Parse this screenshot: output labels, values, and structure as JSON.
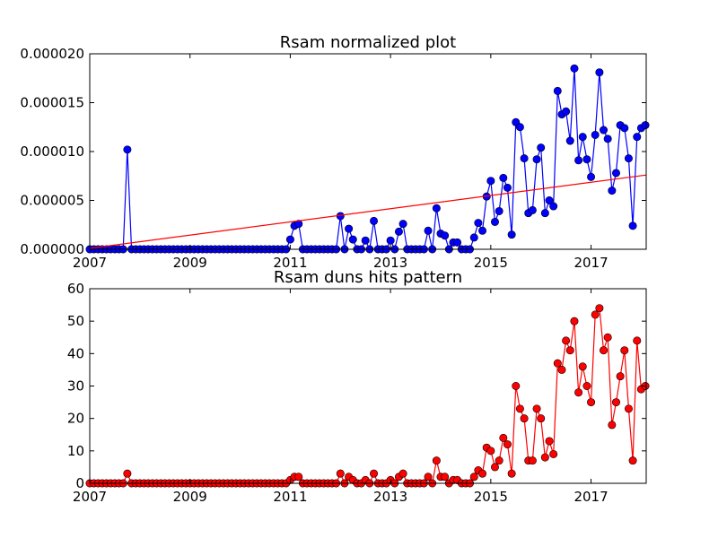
{
  "chart_data": [
    {
      "type": "line",
      "title": "Rsam normalized plot",
      "xlabel": "",
      "ylabel": "",
      "x_ticks": [
        "2007",
        "2009",
        "2011",
        "2013",
        "2015",
        "2017"
      ],
      "y_ticks": [
        "0.000000",
        "0.000005",
        "0.000010",
        "0.000015",
        "0.000020"
      ],
      "xlim": [
        2007.0,
        2018.1
      ],
      "ylim": [
        0,
        2e-05
      ],
      "grid": false,
      "series": [
        {
          "color": "#0000ff",
          "marker": "circle",
          "x": [
            2007.0,
            2007.083,
            2007.167,
            2007.25,
            2007.333,
            2007.417,
            2007.5,
            2007.583,
            2007.667,
            2007.75,
            2007.833,
            2007.917,
            2008.0,
            2008.083,
            2008.167,
            2008.25,
            2008.333,
            2008.417,
            2008.5,
            2008.583,
            2008.667,
            2008.75,
            2008.833,
            2008.917,
            2009.0,
            2009.083,
            2009.167,
            2009.25,
            2009.333,
            2009.417,
            2009.5,
            2009.583,
            2009.667,
            2009.75,
            2009.833,
            2009.917,
            2010.0,
            2010.083,
            2010.167,
            2010.25,
            2010.333,
            2010.417,
            2010.5,
            2010.583,
            2010.667,
            2010.75,
            2010.833,
            2010.917,
            2011.0,
            2011.083,
            2011.167,
            2011.25,
            2011.333,
            2011.417,
            2011.5,
            2011.583,
            2011.667,
            2011.75,
            2011.833,
            2011.917,
            2012.0,
            2012.083,
            2012.167,
            2012.25,
            2012.333,
            2012.417,
            2012.5,
            2012.583,
            2012.667,
            2012.75,
            2012.833,
            2012.917,
            2013.0,
            2013.083,
            2013.167,
            2013.25,
            2013.333,
            2013.417,
            2013.5,
            2013.583,
            2013.667,
            2013.75,
            2013.833,
            2013.917,
            2014.0,
            2014.083,
            2014.167,
            2014.25,
            2014.333,
            2014.417,
            2014.5,
            2014.583,
            2014.667,
            2014.75,
            2014.833,
            2014.917,
            2015.0,
            2015.083,
            2015.167,
            2015.25,
            2015.333,
            2015.417,
            2015.5,
            2015.583,
            2015.667,
            2015.75,
            2015.833,
            2015.917,
            2016.0,
            2016.083,
            2016.167,
            2016.25,
            2016.333,
            2016.417,
            2016.5,
            2016.583,
            2016.667,
            2016.75,
            2016.833,
            2016.917,
            2017.0,
            2017.083,
            2017.167,
            2017.25,
            2017.333,
            2017.417,
            2017.5,
            2017.583,
            2017.667,
            2017.75,
            2017.833,
            2017.917,
            2018.0,
            2018.083
          ],
          "values": [
            0,
            0,
            0,
            0,
            0,
            0,
            0,
            0,
            0,
            1.02e-05,
            0,
            0,
            0,
            0,
            0,
            0,
            0,
            0,
            0,
            0,
            0,
            0,
            0,
            0,
            0,
            0,
            0,
            0,
            0,
            0,
            0,
            0,
            0,
            0,
            0,
            0,
            0,
            0,
            0,
            0,
            0,
            0,
            0,
            0,
            0,
            0,
            0,
            0,
            1e-06,
            2.4e-06,
            2.6e-06,
            0,
            0,
            0,
            0,
            0,
            0,
            0,
            0,
            0,
            3.4e-06,
            0,
            2.1e-06,
            1e-06,
            0,
            0,
            9e-07,
            0,
            2.9e-06,
            0,
            0,
            0,
            9e-07,
            0,
            1.8e-06,
            2.6e-06,
            0,
            0,
            0,
            0,
            0,
            1.9e-06,
            0,
            4.2e-06,
            1.6e-06,
            1.4e-06,
            0,
            7e-07,
            7e-07,
            0,
            0,
            0,
            1.2e-06,
            2.7e-06,
            1.9e-06,
            5.4e-06,
            7e-06,
            2.8e-06,
            3.9e-06,
            7.3e-06,
            6.3e-06,
            1.5e-06,
            1.3e-05,
            1.25e-05,
            9.3e-06,
            3.7e-06,
            4e-06,
            9.2e-06,
            1.04e-05,
            3.7e-06,
            5e-06,
            4.4e-06,
            1.62e-05,
            1.38e-05,
            1.41e-05,
            1.11e-05,
            1.85e-05,
            9.1e-06,
            1.15e-05,
            9.2e-06,
            7.4e-06,
            1.17e-05,
            1.81e-05,
            1.22e-05,
            1.13e-05,
            6e-06,
            7.8e-06,
            1.27e-05,
            1.24e-05,
            9.3e-06,
            2.4e-06,
            1.15e-05,
            1.24e-05,
            1.27e-05
          ]
        },
        {
          "color": "#ff0000",
          "marker": "none",
          "x": [
            2007.0,
            2018.1
          ],
          "values": [
            1e-07,
            7.6e-06
          ]
        }
      ]
    },
    {
      "type": "line",
      "title": "Rsam duns hits pattern",
      "xlabel": "",
      "ylabel": "",
      "x_ticks": [
        "2007",
        "2009",
        "2011",
        "2013",
        "2015",
        "2017"
      ],
      "y_ticks": [
        "0",
        "10",
        "20",
        "30",
        "40",
        "50",
        "60"
      ],
      "xlim": [
        2007.0,
        2018.1
      ],
      "ylim": [
        0,
        60
      ],
      "grid": false,
      "series": [
        {
          "color": "#ff0000",
          "marker": "circle",
          "x": [
            2007.0,
            2007.083,
            2007.167,
            2007.25,
            2007.333,
            2007.417,
            2007.5,
            2007.583,
            2007.667,
            2007.75,
            2007.833,
            2007.917,
            2008.0,
            2008.083,
            2008.167,
            2008.25,
            2008.333,
            2008.417,
            2008.5,
            2008.583,
            2008.667,
            2008.75,
            2008.833,
            2008.917,
            2009.0,
            2009.083,
            2009.167,
            2009.25,
            2009.333,
            2009.417,
            2009.5,
            2009.583,
            2009.667,
            2009.75,
            2009.833,
            2009.917,
            2010.0,
            2010.083,
            2010.167,
            2010.25,
            2010.333,
            2010.417,
            2010.5,
            2010.583,
            2010.667,
            2010.75,
            2010.833,
            2010.917,
            2011.0,
            2011.083,
            2011.167,
            2011.25,
            2011.333,
            2011.417,
            2011.5,
            2011.583,
            2011.667,
            2011.75,
            2011.833,
            2011.917,
            2012.0,
            2012.083,
            2012.167,
            2012.25,
            2012.333,
            2012.417,
            2012.5,
            2012.583,
            2012.667,
            2012.75,
            2012.833,
            2012.917,
            2013.0,
            2013.083,
            2013.167,
            2013.25,
            2013.333,
            2013.417,
            2013.5,
            2013.583,
            2013.667,
            2013.75,
            2013.833,
            2013.917,
            2014.0,
            2014.083,
            2014.167,
            2014.25,
            2014.333,
            2014.417,
            2014.5,
            2014.583,
            2014.667,
            2014.75,
            2014.833,
            2014.917,
            2015.0,
            2015.083,
            2015.167,
            2015.25,
            2015.333,
            2015.417,
            2015.5,
            2015.583,
            2015.667,
            2015.75,
            2015.833,
            2015.917,
            2016.0,
            2016.083,
            2016.167,
            2016.25,
            2016.333,
            2016.417,
            2016.5,
            2016.583,
            2016.667,
            2016.75,
            2016.833,
            2016.917,
            2017.0,
            2017.083,
            2017.167,
            2017.25,
            2017.333,
            2017.417,
            2017.5,
            2017.583,
            2017.667,
            2017.75,
            2017.833,
            2017.917,
            2018.0,
            2018.083
          ],
          "values": [
            0,
            0,
            0,
            0,
            0,
            0,
            0,
            0,
            0,
            3,
            0,
            0,
            0,
            0,
            0,
            0,
            0,
            0,
            0,
            0,
            0,
            0,
            0,
            0,
            0,
            0,
            0,
            0,
            0,
            0,
            0,
            0,
            0,
            0,
            0,
            0,
            0,
            0,
            0,
            0,
            0,
            0,
            0,
            0,
            0,
            0,
            0,
            0,
            1,
            2,
            2,
            0,
            0,
            0,
            0,
            0,
            0,
            0,
            0,
            0,
            3,
            0,
            2,
            1,
            0,
            0,
            1,
            0,
            3,
            0,
            0,
            0,
            1,
            0,
            2,
            3,
            0,
            0,
            0,
            0,
            0,
            2,
            0,
            7,
            2,
            2,
            0,
            1,
            1,
            0,
            0,
            0,
            2,
            4,
            3,
            11,
            10,
            5,
            7,
            14,
            12,
            3,
            30,
            23,
            20,
            7,
            7,
            23,
            20,
            8,
            13,
            9,
            37,
            35,
            44,
            41,
            50,
            28,
            36,
            30,
            25,
            52,
            54,
            41,
            45,
            18,
            25,
            33,
            41,
            23,
            7,
            44,
            29,
            30
          ]
        }
      ]
    }
  ]
}
